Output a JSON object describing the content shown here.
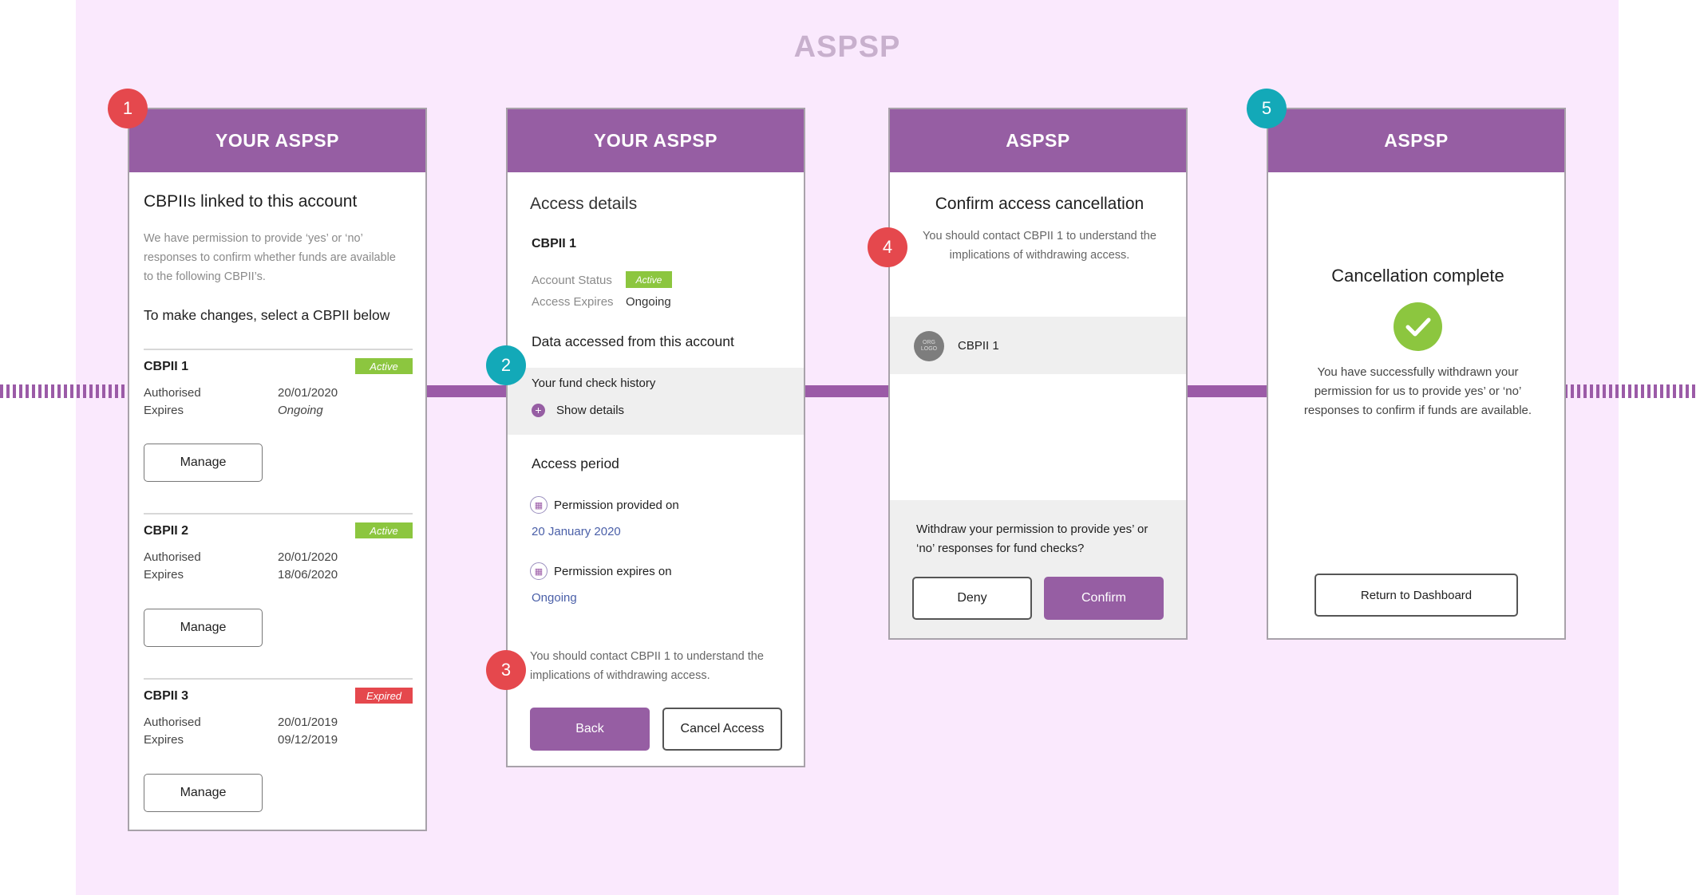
{
  "region_title": "ASPSP",
  "step_numbers": [
    "1",
    "2",
    "3",
    "4",
    "5"
  ],
  "screen1": {
    "header": "YOUR ASPSP",
    "title": "CBPIIs linked to this account",
    "description": [
      "We have permission to provide ‘yes’ or ‘no’",
      "responses to confirm whether funds are available",
      "to the following CBPII’s."
    ],
    "instruction": "To make changes, select a CBPII below",
    "items": [
      {
        "name": "CBPII 1",
        "status": "Active",
        "status_color": "#8cc63f",
        "authorised_label": "Authorised",
        "authorised": "20/01/2020",
        "expires_label": "Expires",
        "expires": "Ongoing",
        "button": "Manage"
      },
      {
        "name": "CBPII 2",
        "status": "Active",
        "status_color": "#8cc63f",
        "authorised_label": "Authorised",
        "authorised": "20/01/2020",
        "expires_label": "Expires",
        "expires": "18/06/2020",
        "button": "Manage"
      },
      {
        "name": "CBPII 3",
        "status": "Expired",
        "status_color": "#e5484d",
        "authorised_label": "Authorised",
        "authorised": "20/01/2019",
        "expires_label": "Expires",
        "expires": "09/12/2019",
        "button": "Manage"
      }
    ]
  },
  "screen2": {
    "header": "YOUR ASPSP",
    "title": "Access details",
    "cbpii": "CBPII 1",
    "account_status_label": "Account Status",
    "account_status": "Active",
    "access_expires_label": "Access Expires",
    "access_expires": "Ongoing",
    "data_title": "Data accessed from this account",
    "fund_history": "Your fund check history",
    "show_details": "Show details",
    "access_period_title": "Access period",
    "provided_label": "Permission provided on",
    "provided_date": "20 January 2020",
    "expires_label": "Permission expires on",
    "expires_value": "Ongoing",
    "notice": [
      "You should contact CBPII 1 to understand the",
      "implications of withdrawing access."
    ],
    "back_button": "Back",
    "cancel_button": "Cancel Access"
  },
  "screen3": {
    "header": "ASPSP",
    "title": "Confirm access cancellation",
    "notice": [
      "You should contact CBPII 1 to understand the",
      "implications of withdrawing access."
    ],
    "logo_text": "ORG LOGO",
    "cbpii": "CBPII 1",
    "question": [
      "Withdraw your permission to provide yes’ or",
      "‘no’ responses for fund checks?"
    ],
    "deny_button": "Deny",
    "confirm_button": "Confirm"
  },
  "screen4": {
    "header": "ASPSP",
    "title": "Cancellation complete",
    "message": [
      "You have successfully withdrawn your",
      "permission for us to provide yes’ or ‘no’",
      "responses to confirm if funds are available."
    ],
    "button": "Return to Dashboard"
  },
  "colors": {
    "brand": "#965ea3",
    "background": "#fae9fd",
    "active": "#8cc63f",
    "expired": "#e5484d",
    "step_red": "#e5484d",
    "step_teal": "#13a9b8",
    "success": "#8cc63f"
  },
  "icons": [
    "plus-circle-icon",
    "calendar-icon",
    "checkmark-icon",
    "org-logo"
  ]
}
